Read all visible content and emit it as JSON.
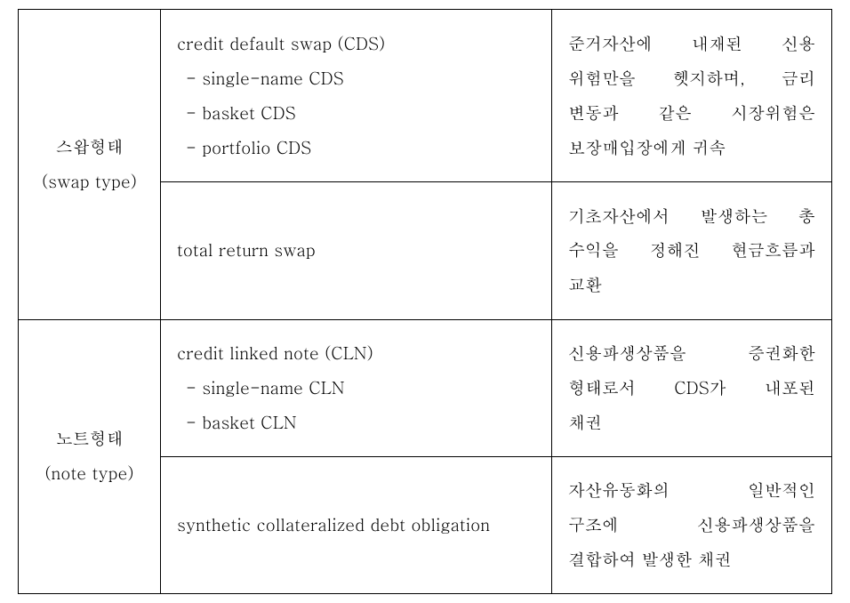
{
  "rows": [
    {
      "category_line1": "스왑형태",
      "category_line2": "(swap type)",
      "sub": [
        {
          "main": "credit default swap (CDS)",
          "items": [
            "- single-name CDS",
            "- basket CDS",
            "- portfolio   CDS"
          ],
          "desc_lines": [
            {
              "text": "준거자산에 내재된 신용",
              "cls": "justify"
            },
            {
              "text": "위험만을 헷지하며, 금리",
              "cls": "justify"
            },
            {
              "text": "변동과 같은 시장위험은",
              "cls": "justify"
            },
            {
              "text": "보장매입장에게 귀속",
              "cls": ""
            }
          ]
        },
        {
          "main": "total return swap",
          "items": [],
          "desc_lines": [
            {
              "text": "기초자산에서 발생하는 총",
              "cls": "justify"
            },
            {
              "text": "수익을 정해진 현금흐름과",
              "cls": "justify"
            },
            {
              "text": "교환",
              "cls": ""
            }
          ]
        }
      ]
    },
    {
      "category_line1": "노트형태",
      "category_line2": "(note type)",
      "sub": [
        {
          "main": "credit linked note (CLN)",
          "items": [
            "- single-name CLN",
            "- basket CLN"
          ],
          "desc_lines": [
            {
              "text": "신용파생상품을 증권화한",
              "cls": "justify"
            },
            {
              "text": "형태로서 CDS가 내포된",
              "cls": "justify"
            },
            {
              "text": "채권",
              "cls": ""
            }
          ]
        },
        {
          "main": "synthetic collateralized debt obligation",
          "items": [],
          "desc_lines": [
            {
              "text": "자산유동화의 일반적인",
              "cls": "justify"
            },
            {
              "text": "구조에 신용파생상품을",
              "cls": "justify"
            },
            {
              "text": "결합하여 발생한 채권",
              "cls": ""
            }
          ]
        }
      ]
    }
  ]
}
